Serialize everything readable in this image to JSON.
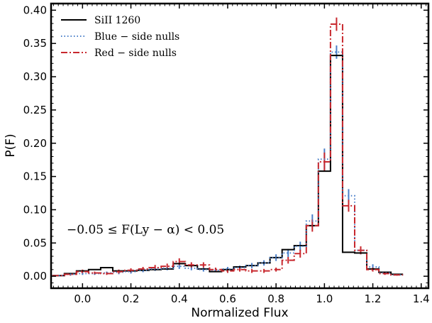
{
  "chart_data": {
    "type": "line",
    "step": true,
    "xlabel": "Normalized Flux",
    "ylabel": "P(F)",
    "xlim": [
      -0.13,
      1.43
    ],
    "ylim": [
      -0.018,
      0.41
    ],
    "xticks": [
      0.0,
      0.2,
      0.4,
      0.6,
      0.8,
      1.0,
      1.2,
      1.4
    ],
    "xtick_labels": [
      "0.0",
      "0.2",
      "0.4",
      "0.6",
      "0.8",
      "1.0",
      "1.2",
      "1.4"
    ],
    "yticks": [
      0.0,
      0.05,
      0.1,
      0.15,
      0.2,
      0.25,
      0.3,
      0.35,
      0.4
    ],
    "ytick_labels": [
      "0.00",
      "0.05",
      "0.10",
      "0.15",
      "0.20",
      "0.25",
      "0.30",
      "0.35",
      "0.40"
    ],
    "bin_edges": [
      -0.125,
      -0.075,
      -0.025,
      0.025,
      0.075,
      0.125,
      0.175,
      0.225,
      0.275,
      0.325,
      0.375,
      0.425,
      0.475,
      0.525,
      0.575,
      0.625,
      0.675,
      0.725,
      0.775,
      0.825,
      0.875,
      0.925,
      0.975,
      1.025,
      1.075,
      1.125,
      1.175,
      1.225,
      1.275,
      1.325
    ],
    "legend_position": "top-left",
    "annotation": "−0.05 ≤ F(Ly − α) < 0.05",
    "series": [
      {
        "name": "SiII 1260",
        "color": "#000000",
        "style": "solid",
        "values": [
          0.001,
          0.004,
          0.008,
          0.01,
          0.013,
          0.008,
          0.008,
          0.009,
          0.01,
          0.011,
          0.019,
          0.016,
          0.011,
          0.007,
          0.01,
          0.014,
          0.016,
          0.02,
          0.028,
          0.04,
          0.046,
          0.076,
          0.158,
          0.332,
          0.036,
          0.035,
          0.011,
          0.006,
          0.003
        ],
        "errors": []
      },
      {
        "name": "Blue − side nulls",
        "color": "#4a7fc9",
        "style": "dotted",
        "values": [
          0.001,
          0.003,
          0.004,
          0.004,
          0.005,
          0.006,
          0.007,
          0.009,
          0.011,
          0.012,
          0.015,
          0.012,
          0.01,
          0.009,
          0.011,
          0.013,
          0.016,
          0.02,
          0.028,
          0.035,
          0.045,
          0.083,
          0.176,
          0.337,
          0.121,
          0.039,
          0.014,
          0.005,
          0.002
        ],
        "errors": [
          0.001,
          0.002,
          0.002,
          0.002,
          0.002,
          0.003,
          0.003,
          0.003,
          0.003,
          0.003,
          0.004,
          0.003,
          0.003,
          0.003,
          0.003,
          0.003,
          0.004,
          0.004,
          0.005,
          0.006,
          0.007,
          0.01,
          0.016,
          0.01,
          0.01,
          0.006,
          0.004,
          0.002,
          0.001
        ]
      },
      {
        "name": "Red − side nulls",
        "color": "#c8282e",
        "style": "dashdot",
        "values": [
          0.001,
          0.003,
          0.007,
          0.005,
          0.004,
          0.007,
          0.009,
          0.011,
          0.013,
          0.015,
          0.022,
          0.017,
          0.017,
          0.01,
          0.008,
          0.01,
          0.008,
          0.008,
          0.01,
          0.024,
          0.034,
          0.076,
          0.172,
          0.379,
          0.106,
          0.039,
          0.01,
          0.004,
          0.002
        ],
        "errors": [
          0.001,
          0.002,
          0.003,
          0.002,
          0.002,
          0.003,
          0.003,
          0.003,
          0.004,
          0.004,
          0.005,
          0.004,
          0.004,
          0.003,
          0.003,
          0.003,
          0.003,
          0.003,
          0.003,
          0.005,
          0.006,
          0.009,
          0.014,
          0.01,
          0.009,
          0.006,
          0.003,
          0.002,
          0.001
        ]
      }
    ]
  }
}
